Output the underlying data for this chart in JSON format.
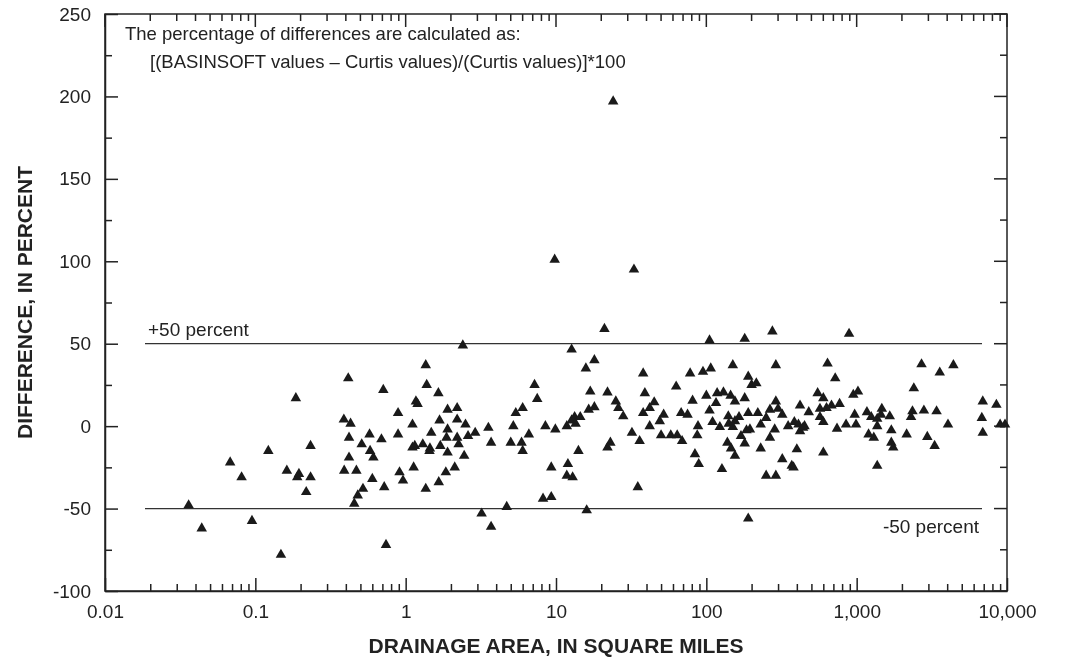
{
  "chart_data": {
    "type": "scatter",
    "xlabel": "DRAINAGE AREA, IN SQUARE MILES",
    "ylabel": "DIFFERENCE, IN PERCENT",
    "annotations": [
      "The percentage of differences are calculated as:",
      "[(BASINSOFT values – Curtis values)/(Curtis values)]*100"
    ],
    "log": "x",
    "grid": false,
    "marker": "triangle",
    "xlim": [
      0.01,
      10000
    ],
    "ylim": [
      -100,
      250
    ],
    "xticks": [
      0.01,
      {
        "value": 0.02,
        "label": null
      },
      {
        "value": 0.03,
        "label": null
      },
      {
        "value": 0.04,
        "label": null
      },
      {
        "value": 0.05,
        "label": null
      },
      {
        "value": 0.06,
        "label": null
      },
      {
        "value": 0.07,
        "label": null
      },
      {
        "value": 0.08,
        "label": null
      },
      {
        "value": 0.09,
        "label": null
      },
      0.1,
      {
        "value": 0.2,
        "label": null
      },
      {
        "value": 0.3,
        "label": null
      },
      {
        "value": 0.4,
        "label": null
      },
      {
        "value": 0.5,
        "label": null
      },
      {
        "value": 0.6,
        "label": null
      },
      {
        "value": 0.7,
        "label": null
      },
      {
        "value": 0.8,
        "label": null
      },
      {
        "value": 0.9,
        "label": null
      },
      1,
      {
        "value": 2,
        "label": null
      },
      {
        "value": 3,
        "label": null
      },
      {
        "value": 4,
        "label": null
      },
      {
        "value": 5,
        "label": null
      },
      {
        "value": 6,
        "label": null
      },
      {
        "value": 7,
        "label": null
      },
      {
        "value": 8,
        "label": null
      },
      {
        "value": 9,
        "label": null
      },
      10,
      {
        "value": 20,
        "label": null
      },
      {
        "value": 30,
        "label": null
      },
      {
        "value": 40,
        "label": null
      },
      {
        "value": 50,
        "label": null
      },
      {
        "value": 60,
        "label": null
      },
      {
        "value": 70,
        "label": null
      },
      {
        "value": 80,
        "label": null
      },
      {
        "value": 90,
        "label": null
      },
      100,
      {
        "value": 200,
        "label": null
      },
      {
        "value": 300,
        "label": null
      },
      {
        "value": 400,
        "label": null
      },
      {
        "value": 500,
        "label": null
      },
      {
        "value": 600,
        "label": null
      },
      {
        "value": 700,
        "label": null
      },
      {
        "value": 800,
        "label": null
      },
      {
        "value": 900,
        "label": null
      },
      {
        "value": 1000,
        "label": "1,000"
      },
      {
        "value": 2000,
        "label": null
      },
      {
        "value": 3000,
        "label": null
      },
      {
        "value": 4000,
        "label": null
      },
      {
        "value": 5000,
        "label": null
      },
      {
        "value": 6000,
        "label": null
      },
      {
        "value": 7000,
        "label": null
      },
      {
        "value": 8000,
        "label": null
      },
      {
        "value": 9000,
        "label": null
      },
      {
        "value": 10000,
        "label": "10,000"
      }
    ],
    "yticks": [
      -100,
      {
        "value": -75,
        "label": null
      },
      -50,
      {
        "value": -25,
        "label": null
      },
      0,
      {
        "value": 25,
        "label": null
      },
      50,
      {
        "value": 75,
        "label": null
      },
      100,
      {
        "value": 125,
        "label": null
      },
      150,
      {
        "value": 175,
        "label": null
      },
      200,
      {
        "value": 225,
        "label": null
      },
      250
    ],
    "ref_lines": [
      {
        "axis": "y",
        "value": 50,
        "label": "+50 percent",
        "color": "#333333"
      },
      {
        "axis": "y",
        "value": -50,
        "label": "-50 percent",
        "color": "#333333"
      }
    ],
    "series": [
      {
        "color": "#1a1a1a",
        "x": [
          0.036,
          0.044,
          0.068,
          0.081,
          0.095,
          0.122,
          0.148,
          0.162,
          0.186,
          0.19,
          0.195,
          0.218,
          0.233,
          0.233,
          0.388,
          0.415,
          0.43,
          0.42,
          0.42,
          0.39,
          0.47,
          0.51,
          0.52,
          0.48,
          0.455,
          0.575,
          0.58,
          0.61,
          0.6,
          0.69,
          0.71,
          0.72,
          0.74,
          0.89,
          0.89,
          0.91,
          0.96,
          1.11,
          1.11,
          1.15,
          1.13,
          1.17,
          1.2,
          1.3,
          1.36,
          1.38,
          1.36,
          1.45,
          1.44,
          1.48,
          1.66,
          1.65,
          1.68,
          1.7,
          1.85,
          1.87,
          1.9,
          1.9,
          1.9,
          2.12,
          2.2,
          2.2,
          2.2,
          2.25,
          2.4,
          2.5,
          2.45,
          2.6,
          2.9,
          3.2,
          3.55,
          3.7,
          3.7,
          4.7,
          5,
          5.2,
          5.4,
          6,
          5.9,
          6,
          6.6,
          7.2,
          7.5,
          8.2,
          9.3,
          8.5,
          9.3,
          9.9,
          9.8,
          12,
          11.8,
          12.9,
          14.1,
          11.8,
          12.7,
          13.3,
          13.5,
          14.5,
          12.7,
          15.8,
          18,
          16.9,
          16.5,
          18,
          16,
          21,
          22,
          22,
          23,
          24,
          25,
          26,
          28,
          32,
          33,
          35,
          36,
          38,
          39,
          38,
          42,
          45,
          42,
          49,
          52,
          50,
          58,
          64,
          69,
          63,
          68,
          75,
          78,
          81,
          84,
          88,
          87,
          89,
          105,
          180,
          275,
          890,
          95,
          107,
          150,
          290,
          640,
          720,
          2700,
          3570,
          4400,
          190,
          200,
          215,
          2400,
          950,
          1020,
          550,
          600,
          100,
          118,
          130,
          145,
          155,
          180,
          116,
          105,
          290,
          300,
          320,
          265,
          420,
          480,
          570,
          630,
          680,
          770,
          570,
          600,
          220,
          165,
          140,
          141,
          150,
          155,
          190,
          250,
          230,
          185,
          195,
          170,
          285,
          265,
          350,
          385,
          410,
          420,
          440,
          450,
          740,
          850,
          990,
          970,
          1170,
          1250,
          1370,
          1470,
          1450,
          1660,
          1370,
          1200,
          1300,
          1700,
          2150,
          2350,
          2300,
          2800,
          3400,
          4050,
          2950,
          3300,
          1700,
          1750,
          6900,
          8500,
          6800,
          6900,
          9000,
          9700,
          123,
          110,
          138,
          146,
          155,
          127,
          180,
          230,
          250,
          290,
          320,
          370,
          380,
          400,
          600,
          1370,
          190
        ],
        "values": [
          -48,
          -62,
          -22,
          -31,
          -57.5,
          -15,
          -78,
          -27,
          17,
          -31,
          -29,
          -40,
          -31,
          -12,
          4,
          29,
          1.5,
          -7,
          -19,
          -27,
          -27,
          -11,
          -38,
          -42,
          -47,
          -5,
          -15,
          -19,
          -32,
          -8,
          22,
          -37,
          -72,
          8,
          -5,
          -28,
          -33,
          1,
          -13,
          -12,
          -25,
          15,
          13.5,
          -11,
          37,
          25,
          -38,
          -13.5,
          -15,
          -4,
          -34,
          20,
          3.5,
          -12,
          -28,
          -7,
          10,
          -2,
          -16,
          -25,
          11,
          4,
          -7,
          -11,
          49,
          1,
          -18,
          -6,
          -4,
          -53,
          -1,
          -10,
          -61,
          -49,
          -10,
          0,
          8,
          11,
          -10,
          -15,
          -5,
          25,
          16.5,
          -44,
          -43,
          0,
          -25,
          -2,
          101,
          -23,
          -30,
          -31,
          -15,
          0,
          3.5,
          5.5,
          1.5,
          5.5,
          46.5,
          35,
          40,
          21,
          10,
          11.5,
          -51,
          59,
          20.5,
          -13,
          -10,
          197,
          15,
          11,
          6,
          -4,
          95,
          -37,
          -9,
          32,
          20,
          8,
          11,
          14.5,
          0,
          3,
          7,
          -5.5,
          -5.5,
          -5.5,
          -9,
          24,
          8,
          7,
          32,
          15.5,
          -17,
          0,
          -5.5,
          -23,
          52,
          53,
          57.5,
          56,
          33,
          35,
          37,
          37,
          38,
          29,
          37.5,
          32.5,
          37,
          30,
          25,
          26,
          23,
          19,
          21,
          20,
          17,
          18.5,
          20,
          20.5,
          18.5,
          15,
          17,
          14,
          9.5,
          15,
          10.5,
          7,
          10,
          12.5,
          8.5,
          10.5,
          11,
          12.5,
          13.5,
          5.5,
          2.5,
          8,
          5.5,
          6,
          1.5,
          -0.5,
          3,
          8,
          5,
          1,
          -2.5,
          -2,
          -6,
          -2,
          -7,
          0,
          2.5,
          1,
          -3,
          -1,
          0,
          -1.5,
          1,
          1,
          7,
          8.5,
          5.5,
          4.5,
          10.5,
          7,
          6,
          0,
          -5,
          -7,
          -2.5,
          -5,
          9,
          5.5,
          9.5,
          9,
          1,
          -6.5,
          -12,
          -10,
          -13,
          15,
          13,
          5,
          -4,
          1,
          1,
          -0.5,
          2.5,
          -10,
          -13.5,
          -18,
          -26,
          -10.5,
          -13.5,
          -30,
          -30,
          -20,
          -24,
          -25,
          -14,
          -16,
          -24,
          -56
        ]
      }
    ]
  }
}
